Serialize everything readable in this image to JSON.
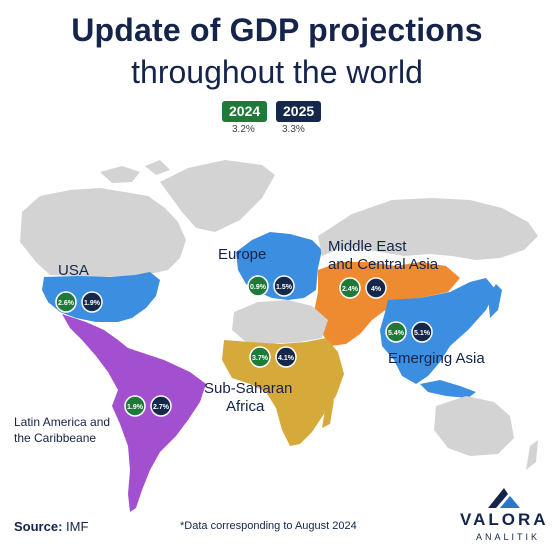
{
  "title": {
    "line1": "Update of GDP projections",
    "line2": "throughout the world"
  },
  "global": {
    "year_2024": "2024",
    "value_2024": "3.2%",
    "year_2025": "2025",
    "value_2025": "3.3%"
  },
  "regions": {
    "usa": {
      "label": "USA",
      "v2024": "2.6%",
      "v2025": "1.9%",
      "color": "#3b8ee0"
    },
    "europe": {
      "label": "Europe",
      "v2024": "0.9%",
      "v2025": "1.5%",
      "color": "#3b8ee0"
    },
    "mideast": {
      "label_line1": "Middle East",
      "label_line2": "and Central Asia",
      "v2024": "2.4%",
      "v2025": "4%",
      "color": "#ee8a30"
    },
    "asia": {
      "label": "Emerging Asia",
      "v2024": "5.4%",
      "v2025": "5.1%",
      "color": "#3b8ee0"
    },
    "africa": {
      "label_line1": "Sub-Saharan",
      "label_line2": "Africa",
      "v2024": "3.7%",
      "v2025": "4.1%",
      "color": "#d6aa3a"
    },
    "latam": {
      "label_line1": "Latin America and",
      "label_line2": "the Caribbeane",
      "v2024": "1.9%",
      "v2025": "2.7%",
      "color": "#a24fd0"
    }
  },
  "colors": {
    "badge_2024": "#1f7a39",
    "badge_2025": "#15284b",
    "land_other": "#d3d3d3",
    "title": "#14244a"
  },
  "footer": {
    "source_label": "Source:",
    "source_value": "IMF",
    "note": "*Data corresponding to August 2024",
    "logo_main": "VALORA",
    "logo_sub": "ANALITIK"
  }
}
